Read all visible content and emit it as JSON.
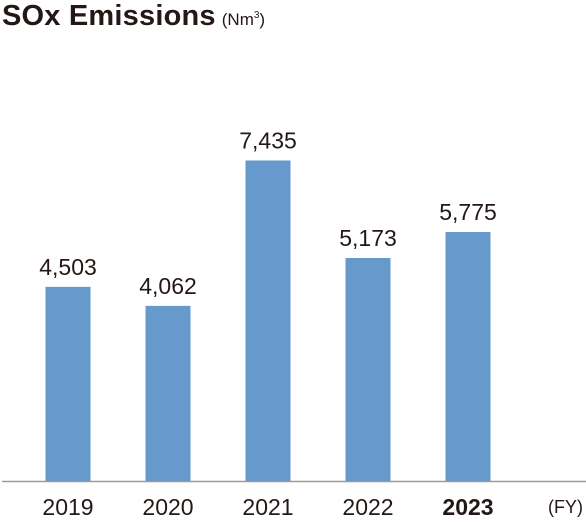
{
  "title": "SOx Emissions",
  "unit": "(Nm³)",
  "chart_data": {
    "type": "bar",
    "title": "SOx Emissions",
    "unit": "(Nm³)",
    "categories": [
      "2019",
      "2020",
      "2021",
      "2022",
      "2023"
    ],
    "values": [
      4503,
      4062,
      7435,
      5173,
      5775
    ],
    "value_labels": [
      "4,503",
      "4,062",
      "7,435",
      "5,173",
      "5,775"
    ],
    "highlight_category": "2023",
    "xlabel": "(FY)",
    "ylabel": "",
    "ylim": [
      0,
      9000
    ],
    "bar_color": "#6699cc",
    "axis_color": "#9a9a9a",
    "text_color": "#231815",
    "grid": false,
    "legend": "none"
  }
}
